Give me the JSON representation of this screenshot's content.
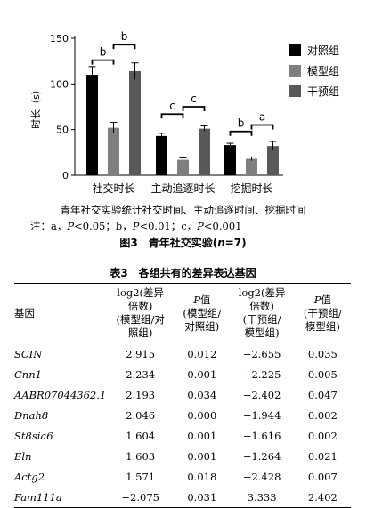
{
  "chart_data": {
    "type": "bar",
    "ylabel": "时长（s）",
    "ylim": [
      0,
      150
    ],
    "yticks": [
      "0",
      "50",
      "100",
      "150"
    ],
    "categories": [
      "社交时长",
      "主动追逐时长",
      "挖掘时长"
    ],
    "series": [
      {
        "name": "对照组",
        "color": "#000000",
        "values": [
          110,
          43,
          33
        ],
        "errors": [
          9,
          3,
          2
        ]
      },
      {
        "name": "模型组",
        "color": "#7f7f7f",
        "values": [
          52,
          17,
          18
        ],
        "errors": [
          6,
          2,
          2
        ]
      },
      {
        "name": "干预组",
        "color": "#595959",
        "values": [
          114,
          51,
          32
        ],
        "errors": [
          9,
          3,
          5
        ]
      }
    ],
    "significance": [
      {
        "category": "社交时长",
        "label": "b",
        "pair": "对照组-模型组"
      },
      {
        "category": "社交时长",
        "label": "b",
        "pair": "模型组-干预组"
      },
      {
        "category": "主动追逐时长",
        "label": "c",
        "pair": "对照组-模型组"
      },
      {
        "category": "主动追逐时长",
        "label": "c",
        "pair": "模型组-干预组"
      },
      {
        "category": "挖掘时长",
        "label": "b",
        "pair": "对照组-模型组"
      },
      {
        "category": "挖掘时长",
        "label": "a",
        "pair": "模型组-干预组"
      }
    ],
    "legend_position": "right"
  },
  "figure": {
    "caption_line1": "青年社交实验统计社交时间、主动追逐时间、挖掘时间",
    "caption_note_prefix": "注：a，",
    "p1": "P",
    "caption_note_a": "<0.05；b，",
    "p2": "P",
    "caption_note_b": "<0.01；c，",
    "p3": "P",
    "caption_note_c": "<0.001",
    "title_prefix": "图3　青年社交实验(",
    "title_n": "n",
    "title_suffix": "=7)"
  },
  "table": {
    "title": "表3　各组共有的差异表达基因",
    "headers": {
      "gene": "基因",
      "log2_a_line1": "log2(差异",
      "log2_a_line2": "倍数)",
      "log2_a_line3": "(模型组/对",
      "log2_a_line4": "照组)",
      "p_a_label": "P",
      "p_a_suffix": "值",
      "p_a_line2": "(模型组/",
      "p_a_line3": "对照组)",
      "log2_b_line1": "log2(差异",
      "log2_b_line2": "倍数)",
      "log2_b_line3": "(干预组/",
      "log2_b_line4": "模型组)",
      "p_b_label": "P",
      "p_b_suffix": "值",
      "p_b_line2": "(干预组/",
      "p_b_line3": "模型组)"
    },
    "rows": [
      {
        "gene": "SCIN",
        "log2_a": "2.915",
        "p_a": "0.012",
        "log2_b": "−2.655",
        "p_b": "0.035"
      },
      {
        "gene": "Cnn1",
        "log2_a": "2.234",
        "p_a": "0.001",
        "log2_b": "−2.225",
        "p_b": "0.005"
      },
      {
        "gene": "AABR07044362.1",
        "log2_a": "2.193",
        "p_a": "0.034",
        "log2_b": "−2.402",
        "p_b": "0.047"
      },
      {
        "gene": "Dnah8",
        "log2_a": "2.046",
        "p_a": "0.000",
        "log2_b": "−1.944",
        "p_b": "0.002"
      },
      {
        "gene": "St8sia6",
        "log2_a": "1.604",
        "p_a": "0.001",
        "log2_b": "−1.616",
        "p_b": "0.002"
      },
      {
        "gene": "Eln",
        "log2_a": "1.603",
        "p_a": "0.001",
        "log2_b": "−1.264",
        "p_b": "0.021"
      },
      {
        "gene": "Actg2",
        "log2_a": "1.571",
        "p_a": "0.018",
        "log2_b": "−2.428",
        "p_b": "0.007"
      },
      {
        "gene": "Fam111a",
        "log2_a": "−2.075",
        "p_a": "0.031",
        "log2_b": "3.333",
        "p_b": "2.402"
      }
    ]
  }
}
